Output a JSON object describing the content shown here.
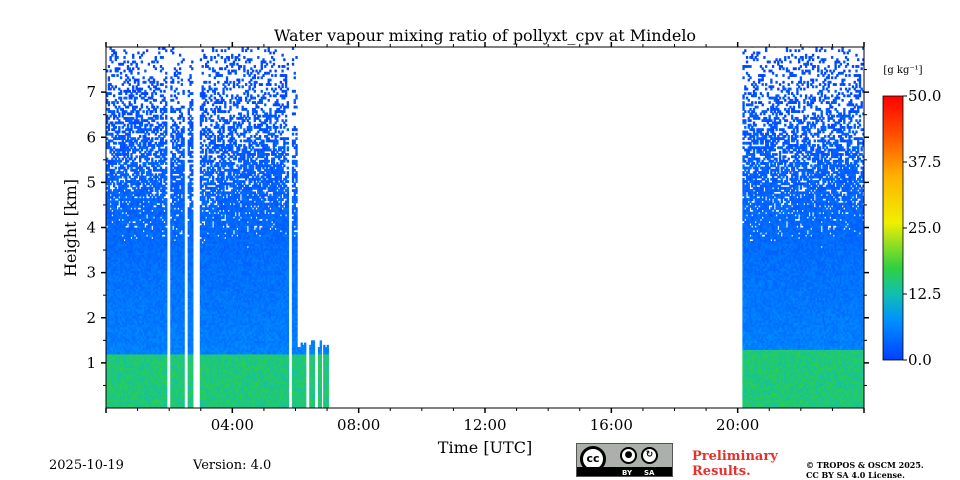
{
  "chart_data": {
    "type": "heatmap",
    "title": "Water vapour mixing ratio of pollyxt_cpv at Mindelo",
    "xlabel": "Time [UTC]",
    "ylabel": "Height [km]",
    "xlim_hours": [
      0,
      24
    ],
    "ylim_km": [
      0,
      8
    ],
    "x_ticks": [
      {
        "hour": 4,
        "label": "04:00"
      },
      {
        "hour": 8,
        "label": "08:00"
      },
      {
        "hour": 12,
        "label": "12:00"
      },
      {
        "hour": 16,
        "label": "16:00"
      },
      {
        "hour": 20,
        "label": "20:00"
      }
    ],
    "y_ticks": [
      {
        "km": 1,
        "label": "1"
      },
      {
        "km": 2,
        "label": "2"
      },
      {
        "km": 3,
        "label": "3"
      },
      {
        "km": 4,
        "label": "4"
      },
      {
        "km": 5,
        "label": "5"
      },
      {
        "km": 6,
        "label": "6"
      },
      {
        "km": 7,
        "label": "7"
      }
    ],
    "colorbar": {
      "unit": "[g kg⁻¹]",
      "min": 0,
      "max": 50,
      "ticks": [
        {
          "value": 0,
          "label": "0.0"
        },
        {
          "value": 12.5,
          "label": "12.5"
        },
        {
          "value": 25,
          "label": "25.0"
        },
        {
          "value": 37.5,
          "label": "37.5"
        },
        {
          "value": 50,
          "label": "50.0"
        }
      ],
      "colors": [
        "#0000ff",
        "#0080ff",
        "#00c0c0",
        "#20d040",
        "#80e020",
        "#f0f000",
        "#ffa000",
        "#ff2000",
        "#ff0000"
      ]
    },
    "data_segments": [
      {
        "start_hour": 0.0,
        "end_hour": 7.0,
        "boundary_layer_km": 1.2,
        "bl_value": 15,
        "aloft_value": 6,
        "data_top_km": 8.0,
        "note": "intermittent gaps"
      },
      {
        "start_hour": 20.15,
        "end_hour": 24.0,
        "boundary_layer_km": 1.3,
        "bl_value": 15,
        "aloft_value": 6,
        "data_top_km": 8.0,
        "note": "continuous"
      }
    ]
  },
  "footer": {
    "date": "2025-10-19",
    "version": "Version: 4.0",
    "cc_label": "cc",
    "cc_by": "BY",
    "cc_sa": "SA",
    "preliminary_line1": "Preliminary",
    "preliminary_line2": "Results.",
    "copyright_line1": "© TROPOS & OSCM 2025.",
    "copyright_line2": "CC BY SA 4.0 License."
  },
  "colors": {
    "preliminary": "#e8302a"
  }
}
